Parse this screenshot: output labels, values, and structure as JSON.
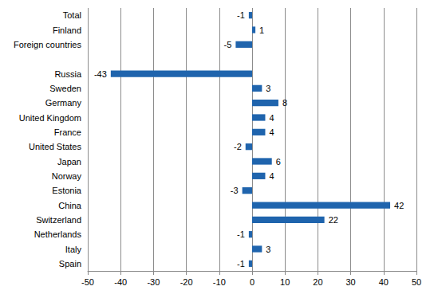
{
  "chart_data": {
    "type": "bar",
    "orientation": "horizontal",
    "categories": [
      "Total",
      "Finland",
      "Foreign countries",
      null,
      "Russia",
      "Sweden",
      "Germany",
      "United Kingdom",
      "France",
      "United States",
      "Japan",
      "Norway",
      "Estonia",
      "China",
      "Switzerland",
      "Netherlands",
      "Italy",
      "Spain"
    ],
    "values": [
      -1,
      1,
      -5,
      null,
      -43,
      3,
      8,
      4,
      4,
      -2,
      6,
      4,
      -3,
      42,
      22,
      -1,
      3,
      -1
    ],
    "color": "#1f64ad",
    "xlim": [
      -50,
      50
    ],
    "xticks": [
      -50,
      -40,
      -30,
      -20,
      -10,
      0,
      10,
      20,
      30,
      40,
      50
    ],
    "grid": true,
    "data_labels": true
  }
}
